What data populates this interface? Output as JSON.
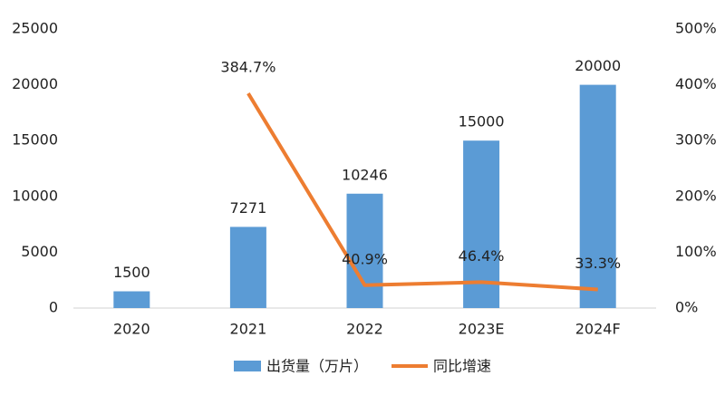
{
  "chart_data": {
    "type": "bar-line",
    "categories": [
      "2020",
      "2021",
      "2022",
      "2023E",
      "2024F"
    ],
    "series": [
      {
        "name": "出货量（万片）",
        "type": "bar",
        "color": "#5b9bd5",
        "values": [
          1500,
          7271,
          10246,
          15000,
          20000
        ]
      },
      {
        "name": "同比增速",
        "type": "line",
        "axis": "y2",
        "color": "#ed7d31",
        "values": [
          null,
          384.7,
          40.9,
          46.4,
          33.3
        ],
        "value_labels": [
          null,
          "384.7%",
          "40.9%",
          "46.4%",
          "33.3%"
        ]
      }
    ],
    "ylim": [
      0,
      25000
    ],
    "yticks": [
      0,
      5000,
      10000,
      15000,
      20000,
      25000
    ],
    "y2lim": [
      0,
      500
    ],
    "y2ticks": [
      {
        "value": 0,
        "label": "0%"
      },
      {
        "value": 100,
        "label": "100%"
      },
      {
        "value": 200,
        "label": "200%"
      },
      {
        "value": 300,
        "label": "300%"
      },
      {
        "value": 400,
        "label": "400%"
      },
      {
        "value": 500,
        "label": "500%"
      }
    ],
    "legend": "bottom"
  }
}
